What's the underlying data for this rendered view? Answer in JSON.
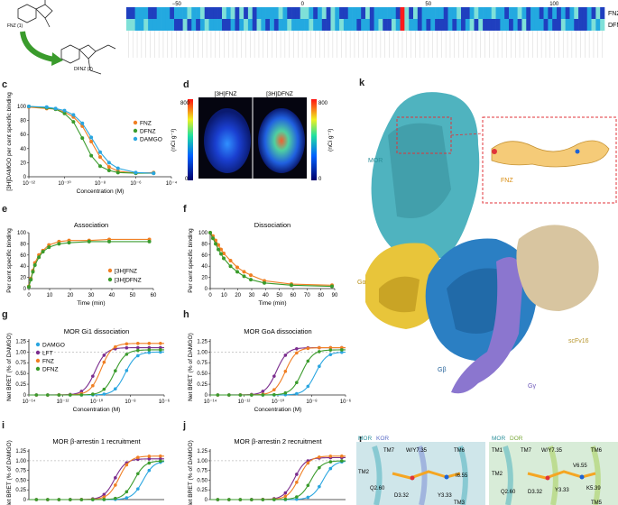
{
  "panel_letters": [
    "c",
    "d",
    "e",
    "f",
    "g",
    "h",
    "i",
    "j",
    "k",
    "l"
  ],
  "panel_a": {
    "compound_top": "FNZ (1)",
    "compound_bottom": "DFNZ (2)"
  },
  "panel_b": {
    "ticks": [
      "−50",
      "0",
      "50",
      "100"
    ],
    "rows": [
      "FNZ",
      "DFNZ"
    ],
    "colors": {
      "low": "#1f3fbf",
      "mid": "#23a9e0",
      "high": "#7fe0d8",
      "hit": "#ff1a1a"
    }
  },
  "chart_data": [
    {
      "panel": "c",
      "type": "line",
      "ylabel": "[3H]DAMGO per cent specific binding",
      "xlabel": "Concentration (M)",
      "x_ticks": [
        "10⁻¹²",
        "10⁻¹⁰",
        "10⁻⁸",
        "10⁻⁶",
        "10⁻⁴"
      ],
      "y_ticks": [
        "0",
        "20",
        "40",
        "60",
        "80",
        "100"
      ],
      "xlim": [
        -12,
        -4
      ],
      "ylim": [
        0,
        100
      ],
      "log_x": true,
      "series": [
        {
          "name": "FNZ",
          "color": "#f07f23",
          "x": [
            -12,
            -11,
            -10.5,
            -10,
            -9.5,
            -9,
            -8.5,
            -8,
            -7.5,
            -7,
            -6,
            -5
          ],
          "y": [
            99,
            97,
            96,
            92,
            85,
            72,
            50,
            28,
            14,
            8,
            5,
            6
          ]
        },
        {
          "name": "DFNZ",
          "color": "#3a9b2c",
          "x": [
            -12,
            -11,
            -10.5,
            -10,
            -9.5,
            -9,
            -8.5,
            -8,
            -7.5,
            -7,
            -6,
            -5
          ],
          "y": [
            100,
            98,
            96,
            90,
            78,
            55,
            30,
            15,
            9,
            6,
            5,
            5
          ]
        },
        {
          "name": "DAMGO",
          "color": "#2aa6e0",
          "x": [
            -12,
            -11,
            -10.5,
            -10,
            -9.5,
            -9,
            -8.5,
            -8,
            -7.5,
            -7,
            -6,
            -5
          ],
          "y": [
            100,
            99,
            97,
            94,
            88,
            76,
            56,
            35,
            20,
            12,
            6,
            5
          ]
        }
      ]
    },
    {
      "panel": "e",
      "type": "line",
      "title": "Association",
      "ylabel": "Per cent specific binding",
      "xlabel": "Time (min)",
      "x_ticks": [
        "0",
        "10",
        "20",
        "30",
        "40",
        "50",
        "60"
      ],
      "y_ticks": [
        "0",
        "20",
        "40",
        "60",
        "80",
        "100"
      ],
      "xlim": [
        0,
        62
      ],
      "ylim": [
        0,
        100
      ],
      "series": [
        {
          "name": "[3H]FNZ",
          "color": "#f07f23",
          "x": [
            0,
            1,
            2,
            3,
            5,
            7,
            10,
            15,
            20,
            30,
            40,
            60
          ],
          "y": [
            4,
            18,
            32,
            46,
            60,
            68,
            78,
            84,
            86,
            86,
            88,
            88
          ]
        },
        {
          "name": "[3H]DFNZ",
          "color": "#3a9b2c",
          "x": [
            0,
            1,
            2,
            3,
            5,
            7,
            10,
            15,
            20,
            30,
            40,
            60
          ],
          "y": [
            3,
            16,
            30,
            42,
            56,
            66,
            74,
            80,
            82,
            84,
            84,
            84
          ]
        }
      ]
    },
    {
      "panel": "f",
      "type": "line",
      "title": "Dissociation",
      "ylabel": "Per cent specific binding",
      "xlabel": "Time (min)",
      "x_ticks": [
        "0",
        "10",
        "20",
        "30",
        "40",
        "50",
        "60",
        "70",
        "80",
        "90"
      ],
      "y_ticks": [
        "0",
        "20",
        "40",
        "60",
        "80",
        "100"
      ],
      "xlim": [
        0,
        92
      ],
      "ylim": [
        0,
        100
      ],
      "series": [
        {
          "name": "FNZ",
          "color": "#f07f23",
          "x": [
            0,
            2,
            4,
            6,
            8,
            10,
            15,
            20,
            25,
            30,
            40,
            60,
            90
          ],
          "y": [
            100,
            94,
            86,
            78,
            70,
            63,
            50,
            38,
            30,
            24,
            14,
            8,
            6
          ]
        },
        {
          "name": "DFNZ",
          "color": "#3a9b2c",
          "x": [
            0,
            2,
            4,
            6,
            8,
            10,
            15,
            20,
            25,
            30,
            40,
            60,
            90
          ],
          "y": [
            100,
            90,
            80,
            70,
            62,
            54,
            40,
            30,
            22,
            16,
            10,
            6,
            4
          ]
        }
      ]
    },
    {
      "panel": "g",
      "type": "line",
      "title": "MOR Gi1 dissociation",
      "ylabel": "Net BRET (% of DAMGO)",
      "xlabel": "Concentration (M)",
      "x_ticks": [
        "10⁻¹⁴",
        "10⁻¹²",
        "10⁻¹⁰",
        "10⁻⁸",
        "10⁻⁶"
      ],
      "y_ticks": [
        "0",
        "0.25",
        "0.50",
        "0.75",
        "1.00",
        "1.25"
      ],
      "xlim": [
        -14,
        -5
      ],
      "ylim": [
        0,
        1.3
      ],
      "log_x": true,
      "series": [
        {
          "name": "DAMGO",
          "color": "#2aa6e0",
          "ec50": -7.6,
          "top": 1.0
        },
        {
          "name": "LFT",
          "color": "#7b2d8e",
          "ec50": -9.6,
          "top": 1.1
        },
        {
          "name": "FNZ",
          "color": "#f07f23",
          "ec50": -9.2,
          "top": 1.2
        },
        {
          "name": "DFNZ",
          "color": "#3a9b2c",
          "ec50": -8.3,
          "top": 1.05
        }
      ]
    },
    {
      "panel": "h",
      "type": "line",
      "title": "MOR GoA dissociation",
      "ylabel": "Net BRET (% of DAMGO)",
      "xlabel": "Concentration (M)",
      "x_ticks": [
        "10⁻¹⁴",
        "10⁻¹²",
        "10⁻¹⁰",
        "10⁻⁸",
        "10⁻⁶"
      ],
      "y_ticks": [
        "0",
        "0.25",
        "0.50",
        "0.75",
        "1.00",
        "1.25"
      ],
      "xlim": [
        -14,
        -5
      ],
      "ylim": [
        0,
        1.3
      ],
      "log_x": true,
      "series": [
        {
          "name": "DAMGO",
          "color": "#2aa6e0",
          "ec50": -7.0,
          "top": 1.0
        },
        {
          "name": "LFT",
          "color": "#7b2d8e",
          "ec50": -9.6,
          "top": 1.1
        },
        {
          "name": "FNZ",
          "color": "#f07f23",
          "ec50": -9.0,
          "top": 1.1
        },
        {
          "name": "DFNZ",
          "color": "#3a9b2c",
          "ec50": -7.9,
          "top": 1.05
        }
      ]
    },
    {
      "panel": "i",
      "type": "line",
      "title": "MOR β-arrestin 1 recruitment",
      "ylabel": "Net BRET (% of DAMGO)",
      "y_ticks": [
        "0",
        "0.25",
        "0.50",
        "0.75",
        "1.00",
        "1.25"
      ],
      "xlim": [
        -14,
        -5
      ],
      "ylim": [
        0,
        1.3
      ],
      "log_x": true,
      "series": [
        {
          "name": "DAMGO",
          "color": "#2aa6e0",
          "ec50": -6.4,
          "top": 1.0
        },
        {
          "name": "LFT",
          "color": "#7b2d8e",
          "ec50": -8.3,
          "top": 1.05
        },
        {
          "name": "FNZ",
          "color": "#f07f23",
          "ec50": -8.0,
          "top": 1.12
        },
        {
          "name": "DFNZ",
          "color": "#3a9b2c",
          "ec50": -7.0,
          "top": 1.0
        }
      ]
    },
    {
      "panel": "j",
      "type": "line",
      "title": "MOR β-arrestin 2 recruitment",
      "ylabel": "Net BRET (% of DAMGO)",
      "y_ticks": [
        "0",
        "0.25",
        "0.50",
        "0.75",
        "1.00",
        "1.25"
      ],
      "xlim": [
        -14,
        -5
      ],
      "ylim": [
        0,
        1.3
      ],
      "log_x": true,
      "series": [
        {
          "name": "DAMGO",
          "color": "#2aa6e0",
          "ec50": -6.5,
          "top": 1.0
        },
        {
          "name": "LFT",
          "color": "#7b2d8e",
          "ec50": -8.4,
          "top": 1.08
        },
        {
          "name": "FNZ",
          "color": "#f07f23",
          "ec50": -8.1,
          "top": 1.12
        },
        {
          "name": "DFNZ",
          "color": "#3a9b2c",
          "ec50": -7.3,
          "top": 1.0
        }
      ]
    }
  ],
  "panel_d": {
    "scale_max": "800",
    "scale_min": "0",
    "unit": "(nCi g⁻¹)",
    "labels": [
      "[3H]FNZ",
      "[3H]DFNZ"
    ]
  },
  "panel_k": {
    "labels": {
      "mor": "MOR",
      "go": "Gα",
      "gb": "Gβ",
      "gg": "Gγ",
      "scfv": "scFv16",
      "fnz": "FNZ"
    },
    "colors": {
      "mor": "#4fb3bf",
      "go": "#e8c53a",
      "gb": "#2b7fc3",
      "gg": "#8b76cf",
      "scfv": "#d8c5a0",
      "fnz": "#f5a623"
    }
  },
  "panel_l": {
    "left": {
      "r1": "MOR",
      "r2": "KOR",
      "res": [
        "TM7",
        "W/Y7.35",
        "TM6",
        "TM2",
        "Q2.60",
        "D3.32",
        "Y3.33",
        "I6.55",
        "TM3"
      ]
    },
    "right": {
      "r1": "MOR",
      "r2": "DOR",
      "res": [
        "TM1",
        "TM7",
        "W/Y7.35",
        "TM6",
        "V6.55",
        "TM2",
        "Q2.60",
        "D3.32",
        "Y3.33",
        "K5.39",
        "TM5"
      ]
    }
  }
}
